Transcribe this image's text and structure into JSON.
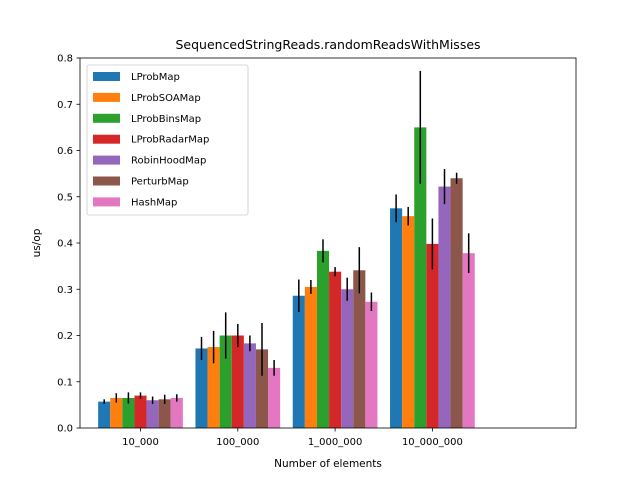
{
  "chart_data": {
    "type": "bar",
    "title": "SequencedStringReads.randomReadsWithMisses",
    "xlabel": "Number of elements",
    "ylabel": "us/op",
    "categories": [
      "10_000",
      "100_000",
      "1_000_000",
      "10_000_000"
    ],
    "ylim": [
      0,
      0.8
    ],
    "yticks": [
      0.0,
      0.1,
      0.2,
      0.3,
      0.4,
      0.5,
      0.6,
      0.7,
      0.8
    ],
    "legend_position": "upper-left",
    "grid": false,
    "series": [
      {
        "name": "LProbMap",
        "color": "#1f77b4",
        "values": [
          0.057,
          0.172,
          0.286,
          0.475
        ],
        "errors": [
          0.005,
          0.025,
          0.035,
          0.03
        ]
      },
      {
        "name": "LProbSOAMap",
        "color": "#ff7f0e",
        "values": [
          0.065,
          0.175,
          0.305,
          0.458
        ],
        "errors": [
          0.01,
          0.035,
          0.015,
          0.02
        ]
      },
      {
        "name": "LProbBinsMap",
        "color": "#2ca02c",
        "values": [
          0.065,
          0.2,
          0.383,
          0.65
        ],
        "errors": [
          0.012,
          0.05,
          0.025,
          0.122
        ]
      },
      {
        "name": "LProbRadarMap",
        "color": "#d62728",
        "values": [
          0.07,
          0.2,
          0.338,
          0.398
        ],
        "errors": [
          0.007,
          0.025,
          0.01,
          0.055
        ]
      },
      {
        "name": "RobinHoodMap",
        "color": "#9467bd",
        "values": [
          0.06,
          0.183,
          0.3,
          0.522
        ],
        "errors": [
          0.008,
          0.017,
          0.025,
          0.038
        ]
      },
      {
        "name": "PerturbMap",
        "color": "#8c564b",
        "values": [
          0.062,
          0.17,
          0.341,
          0.54
        ],
        "errors": [
          0.01,
          0.057,
          0.05,
          0.012
        ]
      },
      {
        "name": "HashMap",
        "color": "#e377c2",
        "values": [
          0.065,
          0.13,
          0.273,
          0.378
        ],
        "errors": [
          0.008,
          0.017,
          0.02,
          0.043
        ]
      }
    ]
  }
}
